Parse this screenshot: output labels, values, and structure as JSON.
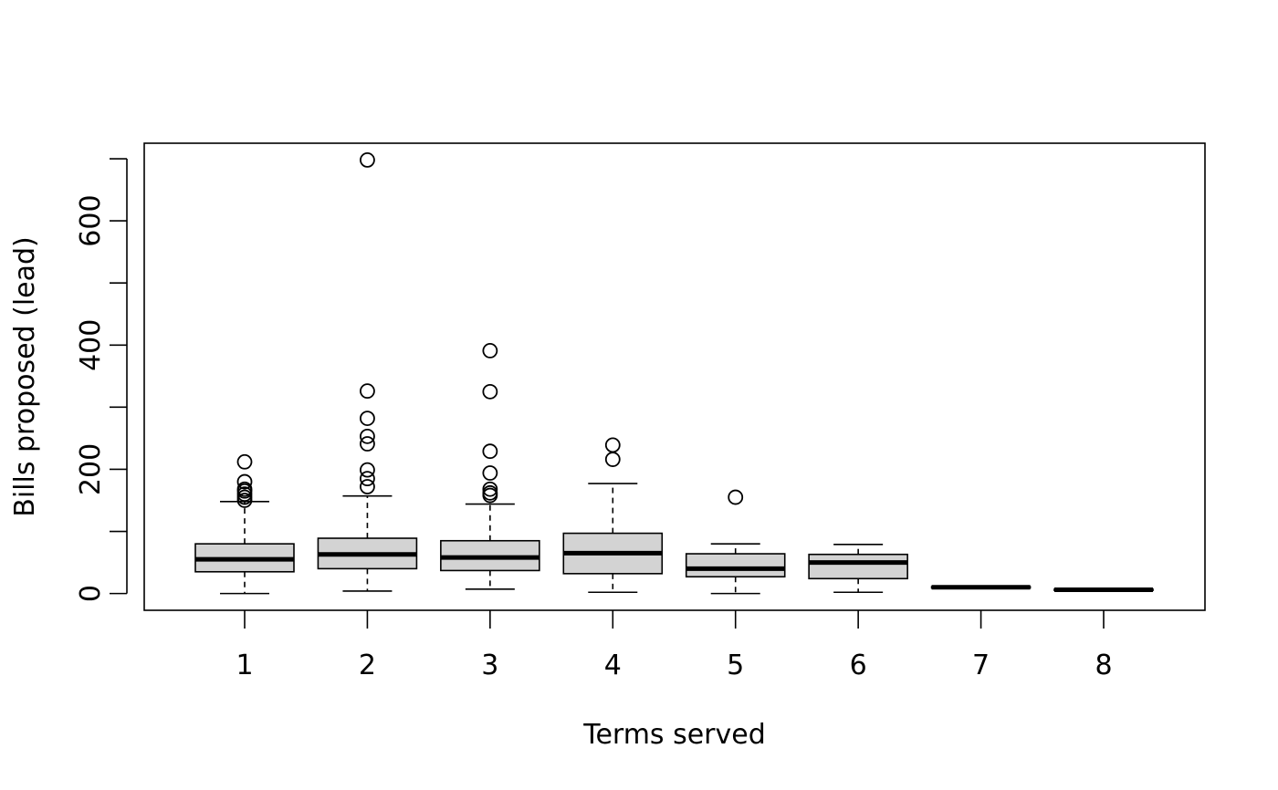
{
  "chart_data": {
    "type": "boxplot",
    "title": "",
    "xlabel": "Terms served",
    "ylabel": "Bills proposed (lead)",
    "categories": [
      "1",
      "2",
      "3",
      "4",
      "5",
      "6",
      "7",
      "8"
    ],
    "y_ticks": [
      "0",
      "200",
      "400",
      "600"
    ],
    "y_minor_ticks": [
      100,
      300,
      500,
      700
    ],
    "ylim": [
      -27,
      725
    ],
    "grid": false,
    "box_fill": "#d3d3d3",
    "boxes": [
      {
        "category": "1",
        "whisker_low": 0,
        "q1": 35,
        "median": 55,
        "q3": 80,
        "whisker_high": 148,
        "outliers": [
          150,
          155,
          160,
          165,
          168,
          180,
          212
        ]
      },
      {
        "category": "2",
        "whisker_low": 4,
        "q1": 40,
        "median": 63,
        "q3": 89,
        "whisker_high": 157,
        "outliers": [
          172,
          185,
          199,
          241,
          253,
          282,
          326,
          698
        ]
      },
      {
        "category": "3",
        "whisker_low": 7,
        "q1": 37,
        "median": 58,
        "q3": 85,
        "whisker_high": 144,
        "outliers": [
          158,
          162,
          168,
          194,
          229,
          325,
          391
        ]
      },
      {
        "category": "4",
        "whisker_low": 2,
        "q1": 32,
        "median": 65,
        "q3": 97,
        "whisker_high": 177,
        "outliers": [
          216,
          239
        ]
      },
      {
        "category": "5",
        "whisker_low": 0,
        "q1": 27,
        "median": 40,
        "q3": 64,
        "whisker_high": 80,
        "outliers": [
          155
        ]
      },
      {
        "category": "6",
        "whisker_low": 2,
        "q1": 24,
        "median": 50,
        "q3": 63,
        "whisker_high": 79,
        "outliers": []
      },
      {
        "category": "7",
        "whisker_low": 9,
        "q1": 9,
        "median": 10,
        "q3": 11,
        "whisker_high": 11,
        "outliers": []
      },
      {
        "category": "8",
        "whisker_low": 5,
        "q1": 5,
        "median": 6,
        "q3": 7,
        "whisker_high": 7,
        "outliers": []
      }
    ]
  }
}
